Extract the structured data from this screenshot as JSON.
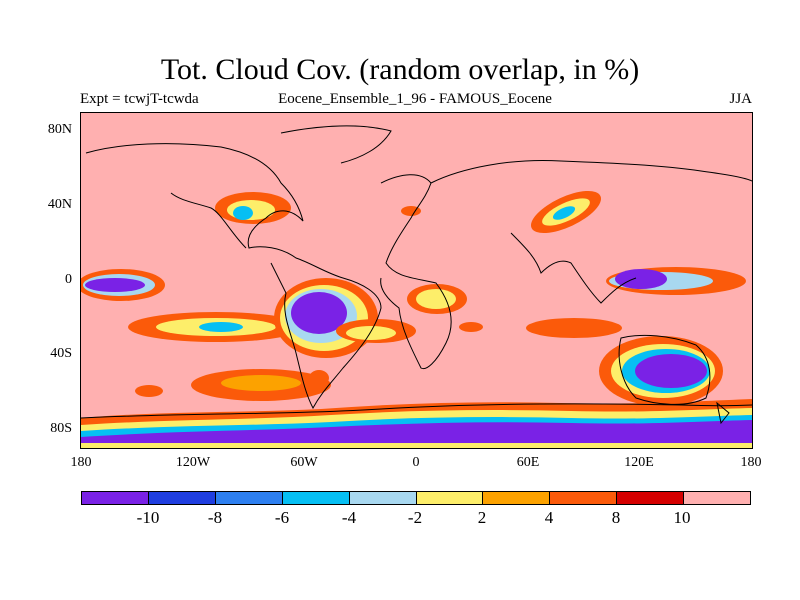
{
  "title": "Tot. Cloud Cov. (random overlap, in %)",
  "subtitle_left": "Expt = tcwjT-tcwda",
  "subtitle_center": "Eocene_Ensemble_1_96 - FAMOUS_Eocene",
  "subtitle_right": "JJA",
  "y_ticks": [
    "80N",
    "40N",
    "0",
    "40S",
    "80S"
  ],
  "x_ticks": [
    "180",
    "120W",
    "60W",
    "0",
    "60E",
    "120E",
    "180"
  ],
  "colorbar": {
    "labels": [
      "-10",
      "-8",
      "-6",
      "-4",
      "-2",
      "2",
      "4",
      "8",
      "10"
    ],
    "colors": [
      "#7a22e6",
      "#1f3ee0",
      "#2d7ff0",
      "#06bff3",
      "#a8d8f0",
      "#fdee6a",
      "#fca200",
      "#fb5a0a",
      "#d50000",
      "#ffb0b0"
    ]
  },
  "map": {
    "background_color": "#ffb0b0",
    "projection": "cylindrical-equidistant",
    "region": "global"
  }
}
